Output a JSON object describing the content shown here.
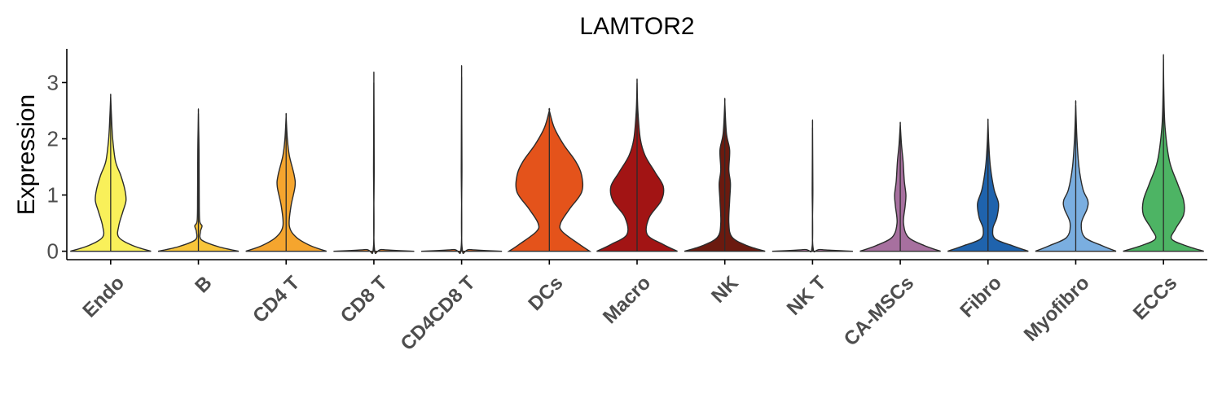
{
  "chart_data": {
    "type": "violin",
    "title": "LAMTOR2",
    "xlabel": "",
    "ylabel": "Expression",
    "ylim": [
      -0.15,
      3.6
    ],
    "yticks": [
      0,
      1,
      2,
      3
    ],
    "grid": false,
    "legend": "none",
    "categories": [
      "Endo",
      "B",
      "CD4 T",
      "CD8 T",
      "CD4CD8 T",
      "DCs",
      "Macro",
      "NK",
      "NK T",
      "CA-MSCs",
      "Fibro",
      "Myofibro",
      "ECCs"
    ],
    "colors": [
      "#f9f05a",
      "#f8c53a",
      "#f5a52e",
      "#f28a2c",
      "#ee6d27",
      "#e4531b",
      "#a21414",
      "#6b1a0f",
      "#c37fb0",
      "#a7709f",
      "#1f63ad",
      "#7aaee0",
      "#4db464"
    ],
    "series": [
      {
        "name": "Endo",
        "max": 2.75,
        "profile": [
          [
            0,
            1.0
          ],
          [
            0.1,
            0.55
          ],
          [
            0.25,
            0.2
          ],
          [
            0.45,
            0.2
          ],
          [
            0.7,
            0.3
          ],
          [
            0.9,
            0.38
          ],
          [
            1.1,
            0.35
          ],
          [
            1.35,
            0.25
          ],
          [
            1.6,
            0.12
          ],
          [
            2.0,
            0.05
          ],
          [
            2.4,
            0.02
          ],
          [
            2.75,
            0.0
          ]
        ]
      },
      {
        "name": "B",
        "max": 2.45,
        "profile": [
          [
            0,
            1.0
          ],
          [
            0.08,
            0.5
          ],
          [
            0.2,
            0.08
          ],
          [
            0.35,
            0.05
          ],
          [
            0.45,
            0.09
          ],
          [
            0.55,
            0.03
          ],
          [
            1.0,
            0.02
          ],
          [
            1.8,
            0.015
          ],
          [
            2.45,
            0.0
          ]
        ]
      },
      {
        "name": "CD4 T",
        "max": 2.4,
        "profile": [
          [
            0,
            1.0
          ],
          [
            0.1,
            0.6
          ],
          [
            0.25,
            0.25
          ],
          [
            0.45,
            0.08
          ],
          [
            0.8,
            0.12
          ],
          [
            1.15,
            0.22
          ],
          [
            1.35,
            0.2
          ],
          [
            1.7,
            0.08
          ],
          [
            2.0,
            0.03
          ],
          [
            2.4,
            0.0
          ]
        ]
      },
      {
        "name": "CD8 T",
        "max": 3.0,
        "profile": [
          [
            0,
            1.0
          ],
          [
            0.03,
            0.2
          ],
          [
            0.08,
            0.01
          ],
          [
            1.5,
            0.008
          ],
          [
            3.0,
            0.0
          ]
        ]
      },
      {
        "name": "CD4CD8 T",
        "max": 3.1,
        "profile": [
          [
            0,
            1.0
          ],
          [
            0.03,
            0.2
          ],
          [
            0.08,
            0.01
          ],
          [
            1.5,
            0.008
          ],
          [
            3.1,
            0.0
          ]
        ]
      },
      {
        "name": "DCs",
        "max": 2.5,
        "profile": [
          [
            0,
            1.0
          ],
          [
            0.12,
            0.75
          ],
          [
            0.35,
            0.32
          ],
          [
            0.5,
            0.28
          ],
          [
            0.75,
            0.5
          ],
          [
            1.05,
            0.8
          ],
          [
            1.35,
            0.8
          ],
          [
            1.6,
            0.65
          ],
          [
            1.9,
            0.35
          ],
          [
            2.2,
            0.12
          ],
          [
            2.5,
            0.0
          ]
        ]
      },
      {
        "name": "Macro",
        "max": 3.0,
        "profile": [
          [
            0,
            1.0
          ],
          [
            0.12,
            0.65
          ],
          [
            0.3,
            0.25
          ],
          [
            0.6,
            0.3
          ],
          [
            0.9,
            0.6
          ],
          [
            1.15,
            0.65
          ],
          [
            1.4,
            0.45
          ],
          [
            1.7,
            0.2
          ],
          [
            2.0,
            0.08
          ],
          [
            2.5,
            0.02
          ],
          [
            3.0,
            0.0
          ]
        ]
      },
      {
        "name": "NK",
        "max": 2.65,
        "profile": [
          [
            0,
            1.0
          ],
          [
            0.1,
            0.55
          ],
          [
            0.25,
            0.18
          ],
          [
            0.5,
            0.1
          ],
          [
            0.9,
            0.12
          ],
          [
            1.2,
            0.14
          ],
          [
            1.45,
            0.1
          ],
          [
            1.8,
            0.12
          ],
          [
            2.1,
            0.04
          ],
          [
            2.65,
            0.0
          ]
        ]
      },
      {
        "name": "NK T",
        "max": 2.2,
        "profile": [
          [
            0,
            1.0
          ],
          [
            0.03,
            0.2
          ],
          [
            0.08,
            0.01
          ],
          [
            1.1,
            0.008
          ],
          [
            2.2,
            0.0
          ]
        ]
      },
      {
        "name": "CA-MSCs",
        "max": 2.25,
        "profile": [
          [
            0,
            1.0
          ],
          [
            0.1,
            0.6
          ],
          [
            0.25,
            0.2
          ],
          [
            0.5,
            0.08
          ],
          [
            0.8,
            0.12
          ],
          [
            1.0,
            0.14
          ],
          [
            1.25,
            0.1
          ],
          [
            1.6,
            0.07
          ],
          [
            1.9,
            0.03
          ],
          [
            2.25,
            0.0
          ]
        ]
      },
      {
        "name": "Fibro",
        "max": 2.3,
        "profile": [
          [
            0,
            1.0
          ],
          [
            0.1,
            0.6
          ],
          [
            0.22,
            0.18
          ],
          [
            0.4,
            0.12
          ],
          [
            0.6,
            0.22
          ],
          [
            0.85,
            0.26
          ],
          [
            1.1,
            0.15
          ],
          [
            1.5,
            0.06
          ],
          [
            1.9,
            0.02
          ],
          [
            2.3,
            0.0
          ]
        ]
      },
      {
        "name": "Myofibro",
        "max": 2.6,
        "profile": [
          [
            0,
            1.0
          ],
          [
            0.1,
            0.65
          ],
          [
            0.25,
            0.22
          ],
          [
            0.5,
            0.14
          ],
          [
            0.75,
            0.28
          ],
          [
            0.9,
            0.3
          ],
          [
            1.1,
            0.18
          ],
          [
            1.5,
            0.08
          ],
          [
            2.0,
            0.03
          ],
          [
            2.6,
            0.0
          ]
        ]
      },
      {
        "name": "ECCs",
        "max": 3.42,
        "profile": [
          [
            0,
            1.0
          ],
          [
            0.1,
            0.55
          ],
          [
            0.22,
            0.2
          ],
          [
            0.4,
            0.3
          ],
          [
            0.65,
            0.5
          ],
          [
            0.9,
            0.5
          ],
          [
            1.2,
            0.35
          ],
          [
            1.6,
            0.15
          ],
          [
            2.2,
            0.04
          ],
          [
            2.8,
            0.01
          ],
          [
            3.42,
            0.0
          ]
        ]
      }
    ]
  }
}
